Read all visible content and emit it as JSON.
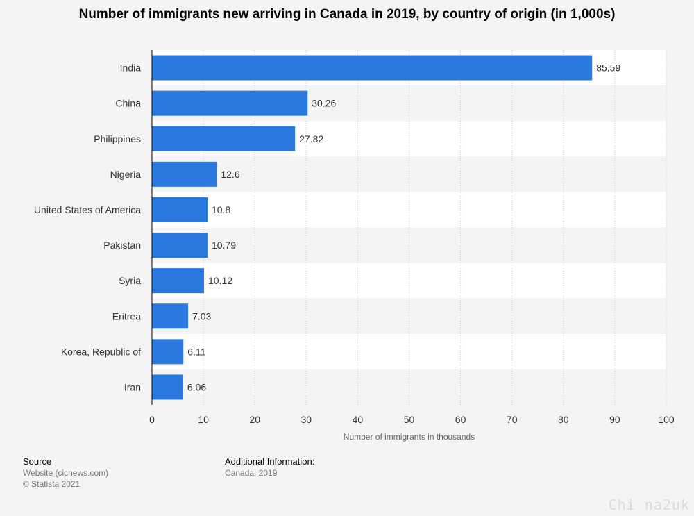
{
  "chart_data": {
    "type": "bar",
    "orientation": "horizontal",
    "title": "Number of immigrants new arriving in Canada in 2019, by country of origin (in 1,000s)",
    "xlabel": "Number of immigrants in thousands",
    "ylabel": "",
    "xlim": [
      0,
      100
    ],
    "xticks": [
      0,
      10,
      20,
      30,
      40,
      50,
      60,
      70,
      80,
      90,
      100
    ],
    "categories": [
      "India",
      "China",
      "Philippines",
      "Nigeria",
      "United States of America",
      "Pakistan",
      "Syria",
      "Eritrea",
      "Korea, Republic of",
      "Iran"
    ],
    "values": [
      85.59,
      30.26,
      27.82,
      12.6,
      10.8,
      10.79,
      10.12,
      7.03,
      6.11,
      6.06
    ],
    "value_labels": [
      "85.59",
      "30.26",
      "27.82",
      "12.6",
      "10.8",
      "10.79",
      "10.12",
      "7.03",
      "6.11",
      "6.06"
    ],
    "bar_color": "#2a77dd",
    "grid": true,
    "legend": "none"
  },
  "footer": {
    "source_heading": "Source",
    "source_line1": "Website (cicnews.com)",
    "source_line2": "© Statista 2021",
    "additional_heading": "Additional Information:",
    "additional_text": "Canada; 2019"
  },
  "watermark": "Chi na2uk"
}
